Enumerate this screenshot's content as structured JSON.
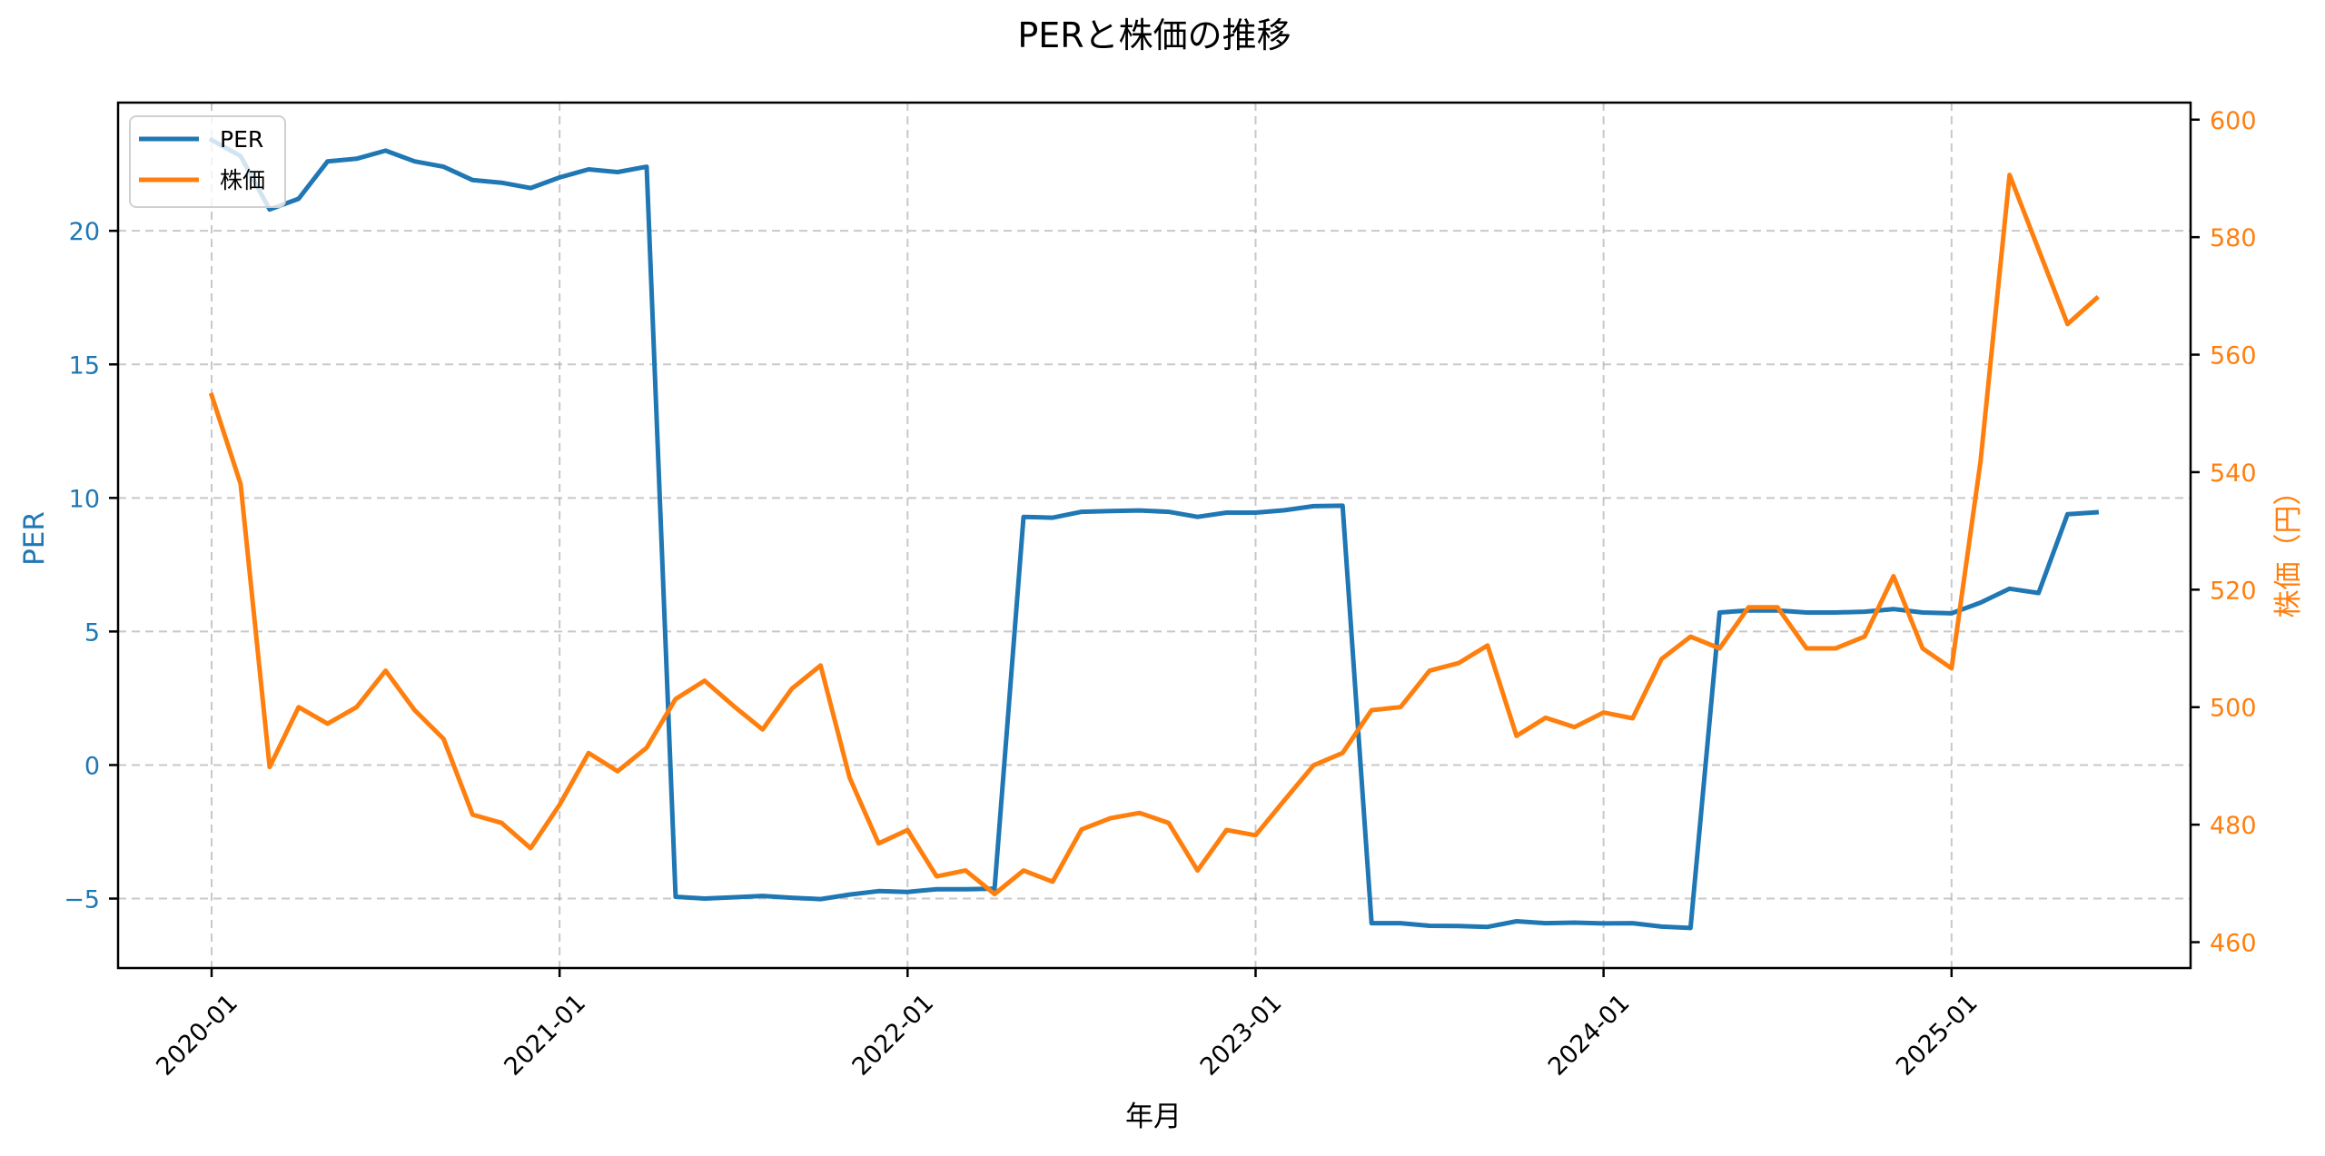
{
  "figure": {
    "title": "PERと株価の推移",
    "xlabel": "年月",
    "ylabel_left": "PER",
    "ylabel_right": "株価（円）",
    "legend": [
      {
        "label": "PER",
        "color": "#1f77b4"
      },
      {
        "label": "株価",
        "color": "#ff7f0e"
      }
    ],
    "colors": {
      "per": "#1f77b4",
      "price": "#ff7f0e",
      "grid": "#b0b0b0",
      "axis": "#000000"
    }
  },
  "chart_data": {
    "type": "line",
    "title": "PERと株価の推移",
    "xlabel": "年月",
    "ylabel": "PER",
    "ylabel_secondary": "株価（円）",
    "x_tick_labels": [
      "2020-01",
      "2021-01",
      "2022-01",
      "2023-01",
      "2024-01",
      "2025-01"
    ],
    "y_ticks_left": [
      -5,
      0,
      5,
      10,
      15,
      20
    ],
    "y_ticks_right": [
      460,
      480,
      500,
      520,
      540,
      560,
      580,
      600
    ],
    "ylim_left": [
      -7.6,
      24.8
    ],
    "ylim_right": [
      455.6,
      602.9
    ],
    "grid": true,
    "legend_position": "upper left",
    "x": [
      "2020-01",
      "2020-02",
      "2020-03",
      "2020-04",
      "2020-05",
      "2020-06",
      "2020-07",
      "2020-08",
      "2020-09",
      "2020-10",
      "2020-11",
      "2020-12",
      "2021-01",
      "2021-02",
      "2021-03",
      "2021-04",
      "2021-05",
      "2021-06",
      "2021-07",
      "2021-08",
      "2021-09",
      "2021-10",
      "2021-11",
      "2021-12",
      "2022-01",
      "2022-02",
      "2022-03",
      "2022-04",
      "2022-05",
      "2022-06",
      "2022-07",
      "2022-08",
      "2022-09",
      "2022-10",
      "2022-11",
      "2022-12",
      "2023-01",
      "2023-02",
      "2023-03",
      "2023-04",
      "2023-05",
      "2023-06",
      "2023-07",
      "2023-08",
      "2023-09",
      "2023-10",
      "2023-11",
      "2023-12",
      "2024-01",
      "2024-02",
      "2024-03",
      "2024-04",
      "2024-05",
      "2024-06",
      "2024-07",
      "2024-08",
      "2024-09",
      "2024-10",
      "2024-11",
      "2024-12",
      "2025-01",
      "2025-02",
      "2025-03",
      "2025-04",
      "2025-05",
      "2025-06"
    ],
    "series": [
      {
        "name": "PER",
        "axis": "left",
        "color": "#1f77b4",
        "values": [
          23.4,
          22.8,
          20.8,
          21.2,
          22.6,
          22.7,
          23.0,
          22.6,
          22.4,
          21.9,
          21.8,
          21.6,
          22.0,
          22.3,
          22.2,
          22.4,
          -4.93,
          -5.0,
          -4.95,
          -4.9,
          -4.97,
          -5.02,
          -4.85,
          -4.72,
          -4.75,
          -4.65,
          -4.65,
          -4.63,
          9.29,
          9.26,
          9.48,
          9.51,
          9.53,
          9.48,
          9.29,
          9.45,
          9.45,
          9.54,
          9.69,
          9.71,
          -5.92,
          -5.92,
          -6.02,
          -6.03,
          -6.06,
          -5.85,
          -5.92,
          -5.9,
          -5.93,
          -5.92,
          -6.05,
          -6.1,
          5.71,
          5.79,
          5.79,
          5.71,
          5.71,
          5.74,
          5.84,
          5.71,
          5.68,
          6.08,
          6.6,
          6.44,
          9.39,
          9.46
        ]
      },
      {
        "name": "株価",
        "axis": "right",
        "color": "#ff7f0e",
        "values": [
          553.1,
          538.0,
          489.8,
          500.0,
          497.2,
          500.0,
          506.2,
          499.5,
          494.6,
          481.7,
          480.3,
          476.0,
          483.4,
          492.2,
          489.1,
          493.1,
          501.4,
          504.5,
          500.2,
          496.2,
          503.1,
          507.1,
          488.0,
          476.8,
          479.1,
          471.2,
          472.2,
          468.2,
          472.2,
          470.3,
          479.2,
          481.1,
          482.0,
          480.3,
          472.2,
          479.1,
          478.2,
          484.2,
          490.1,
          492.2,
          499.5,
          500.0,
          506.2,
          507.5,
          510.5,
          495.1,
          498.2,
          496.6,
          499.1,
          498.1,
          508.2,
          512.0,
          510.0,
          517.0,
          517.0,
          510.0,
          510.0,
          512.0,
          522.3,
          510.0,
          506.6,
          541.8,
          590.6,
          577.9,
          565.2,
          569.6
        ]
      }
    ]
  }
}
